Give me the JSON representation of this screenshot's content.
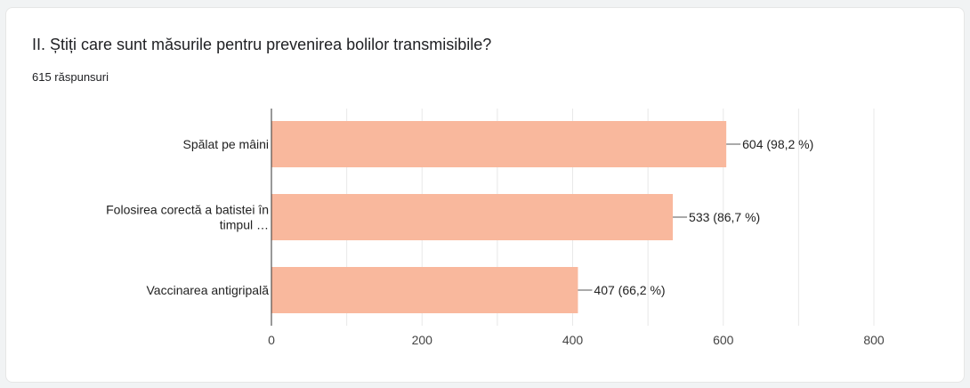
{
  "question": {
    "title": "II. Știți care sunt măsurile pentru prevenirea bolilor transmisibile?",
    "responses": "615 răspunsuri"
  },
  "colors": {
    "bar": "#f9b89d",
    "grid": "#e8e8e8",
    "axis": "#333333"
  },
  "chart_data": {
    "type": "bar",
    "orientation": "horizontal",
    "categories": [
      [
        "Spălat pe mâini"
      ],
      [
        "Folosirea corectă a batistei în",
        "timpul …"
      ],
      [
        "Vaccinarea antigripală"
      ]
    ],
    "values": [
      604,
      533,
      407
    ],
    "labels": [
      "604 (98,2 %)",
      "533 (86,7 %)",
      "407 (66,2 %)"
    ],
    "xlim": [
      0,
      800
    ],
    "xticks": [
      0,
      200,
      400,
      600,
      800
    ],
    "grid": true,
    "legend": "none"
  }
}
